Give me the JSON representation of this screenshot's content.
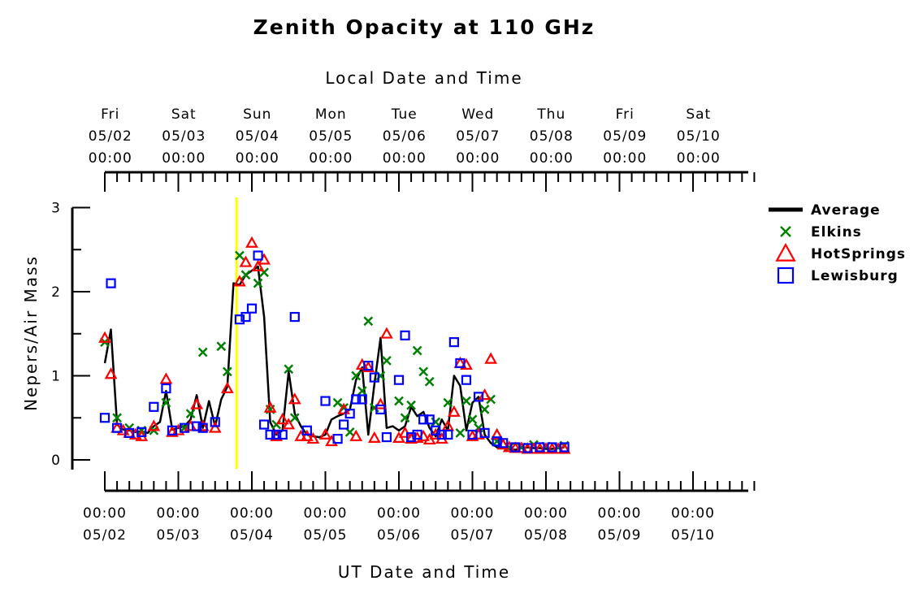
{
  "chart_data": {
    "type": "line",
    "title": "Zenith Opacity at 110 GHz",
    "top_axis_title": "Local Date and Time",
    "xlabel": "UT Date and Time",
    "ylabel": "Nepers/Air Mass",
    "ylim": [
      0,
      3
    ],
    "y_ticks": [
      "0",
      "1",
      "2",
      "3"
    ],
    "xlim": [
      "05/02 00:00",
      "05/10 20:00"
    ],
    "top_ticks": [
      {
        "day": "Fri",
        "date": "05/02",
        "time": "00:00"
      },
      {
        "day": "Sat",
        "date": "05/03",
        "time": "00:00"
      },
      {
        "day": "Sun",
        "date": "05/04",
        "time": "00:00"
      },
      {
        "day": "Mon",
        "date": "05/05",
        "time": "00:00"
      },
      {
        "day": "Tue",
        "date": "05/06",
        "time": "00:00"
      },
      {
        "day": "Wed",
        "date": "05/07",
        "time": "00:00"
      },
      {
        "day": "Thu",
        "date": "05/08",
        "time": "00:00"
      },
      {
        "day": "Fri",
        "date": "05/09",
        "time": "00:00"
      },
      {
        "day": "Sat",
        "date": "05/10",
        "time": "00:00"
      }
    ],
    "bottom_ticks": [
      {
        "time": "00:00",
        "date": "05/02"
      },
      {
        "time": "00:00",
        "date": "05/03"
      },
      {
        "time": "00:00",
        "date": "05/04"
      },
      {
        "time": "00:00",
        "date": "05/05"
      },
      {
        "time": "00:00",
        "date": "05/06"
      },
      {
        "time": "00:00",
        "date": "05/07"
      },
      {
        "time": "00:00",
        "date": "05/08"
      },
      {
        "time": "00:00",
        "date": "05/09"
      },
      {
        "time": "00:00",
        "date": "05/10"
      }
    ],
    "marker_line": {
      "x": "05/03 19:00",
      "color": "#ffff00"
    },
    "legend_position": "right",
    "series": [
      {
        "name": "Average",
        "style": "line",
        "color": "#000000",
        "points": [
          [
            "05/02 00:00",
            1.15
          ],
          [
            "05/02 02:00",
            1.55
          ],
          [
            "05/02 04:00",
            0.42
          ],
          [
            "05/02 06:00",
            0.36
          ],
          [
            "05/02 08:00",
            0.35
          ],
          [
            "05/02 10:00",
            0.33
          ],
          [
            "05/02 12:00",
            0.34
          ],
          [
            "05/02 14:00",
            0.32
          ],
          [
            "05/02 16:00",
            0.4
          ],
          [
            "05/02 18:00",
            0.45
          ],
          [
            "05/02 20:00",
            0.82
          ],
          [
            "05/02 22:00",
            0.36
          ],
          [
            "05/03 00:00",
            0.38
          ],
          [
            "05/03 02:00",
            0.4
          ],
          [
            "05/03 04:00",
            0.48
          ],
          [
            "05/03 06:00",
            0.77
          ],
          [
            "05/03 08:00",
            0.38
          ],
          [
            "05/03 10:00",
            0.7
          ],
          [
            "05/03 12:00",
            0.4
          ],
          [
            "05/03 14:00",
            0.72
          ],
          [
            "05/03 16:00",
            0.87
          ],
          [
            "05/03 18:00",
            2.1
          ],
          [
            "05/03 20:00",
            2.08
          ],
          [
            "05/03 22:00",
            2.2
          ],
          [
            "05/04 00:00",
            2.25
          ],
          [
            "05/04 02:00",
            2.3
          ],
          [
            "05/04 04:00",
            1.7
          ],
          [
            "05/04 06:00",
            0.45
          ],
          [
            "05/04 08:00",
            0.3
          ],
          [
            "05/04 10:00",
            0.35
          ],
          [
            "05/04 12:00",
            1.05
          ],
          [
            "05/04 14:00",
            0.55
          ],
          [
            "05/04 16:00",
            0.4
          ],
          [
            "05/04 18:00",
            0.3
          ],
          [
            "05/04 20:00",
            0.28
          ],
          [
            "05/04 22:00",
            0.27
          ],
          [
            "05/05 00:00",
            0.3
          ],
          [
            "05/05 02:00",
            0.48
          ],
          [
            "05/05 04:00",
            0.52
          ],
          [
            "05/05 06:00",
            0.55
          ],
          [
            "05/05 08:00",
            0.6
          ],
          [
            "05/05 10:00",
            0.95
          ],
          [
            "05/05 12:00",
            1.1
          ],
          [
            "05/05 14:00",
            0.3
          ],
          [
            "05/05 16:00",
            0.9
          ],
          [
            "05/05 18:00",
            1.45
          ],
          [
            "05/05 20:00",
            0.38
          ],
          [
            "05/05 22:00",
            0.4
          ],
          [
            "05/06 00:00",
            0.35
          ],
          [
            "05/06 02:00",
            0.4
          ],
          [
            "05/06 04:00",
            0.63
          ],
          [
            "05/06 06:00",
            0.52
          ],
          [
            "05/06 08:00",
            0.57
          ],
          [
            "05/06 10:00",
            0.38
          ],
          [
            "05/06 12:00",
            0.28
          ],
          [
            "05/06 14:00",
            0.48
          ],
          [
            "05/06 16:00",
            0.35
          ],
          [
            "05/06 18:00",
            1.0
          ],
          [
            "05/06 20:00",
            0.88
          ],
          [
            "05/06 22:00",
            0.35
          ],
          [
            "05/07 00:00",
            0.68
          ],
          [
            "05/07 02:00",
            0.75
          ],
          [
            "05/07 04:00",
            0.3
          ],
          [
            "05/07 06:00",
            0.2
          ],
          [
            "05/07 08:00",
            0.15
          ],
          [
            "05/07 10:00",
            0.14
          ],
          [
            "05/07 12:00",
            0.13
          ],
          [
            "05/07 14:00",
            0.12
          ],
          [
            "05/07 16:00",
            0.14
          ],
          [
            "05/07 18:00",
            0.15
          ],
          [
            "05/07 20:00",
            0.14
          ],
          [
            "05/07 22:00",
            0.14
          ],
          [
            "05/08 00:00",
            0.13
          ],
          [
            "05/08 02:00",
            0.13
          ],
          [
            "05/08 04:00",
            0.14
          ],
          [
            "05/08 06:00",
            0.15
          ]
        ]
      },
      {
        "name": "Elkins",
        "style": "x",
        "color": "#008000",
        "points": [
          [
            "05/02 00:00",
            1.4
          ],
          [
            "05/02 04:00",
            0.5
          ],
          [
            "05/02 08:00",
            0.38
          ],
          [
            "05/02 12:00",
            0.35
          ],
          [
            "05/02 16:00",
            0.35
          ],
          [
            "05/02 20:00",
            0.68
          ],
          [
            "05/03 02:00",
            0.38
          ],
          [
            "05/03 04:00",
            0.55
          ],
          [
            "05/03 08:00",
            1.28
          ],
          [
            "05/03 14:00",
            1.35
          ],
          [
            "05/03 16:00",
            1.05
          ],
          [
            "05/03 20:00",
            2.43
          ],
          [
            "05/03 22:00",
            2.2
          ],
          [
            "05/04 02:00",
            2.1
          ],
          [
            "05/04 04:00",
            2.23
          ],
          [
            "05/04 06:00",
            0.6
          ],
          [
            "05/04 08:00",
            0.42
          ],
          [
            "05/04 12:00",
            1.08
          ],
          [
            "05/04 14:00",
            0.5
          ],
          [
            "05/05 04:00",
            0.68
          ],
          [
            "05/05 06:00",
            0.62
          ],
          [
            "05/05 08:00",
            0.33
          ],
          [
            "05/05 10:00",
            1.0
          ],
          [
            "05/05 12:00",
            0.82
          ],
          [
            "05/05 14:00",
            1.65
          ],
          [
            "05/05 16:00",
            0.62
          ],
          [
            "05/05 18:00",
            1.0
          ],
          [
            "05/05 20:00",
            1.18
          ],
          [
            "05/06 00:00",
            0.7
          ],
          [
            "05/06 02:00",
            0.5
          ],
          [
            "05/06 04:00",
            0.65
          ],
          [
            "05/06 06:00",
            1.3
          ],
          [
            "05/06 08:00",
            1.05
          ],
          [
            "05/06 10:00",
            0.93
          ],
          [
            "05/06 12:00",
            0.45
          ],
          [
            "05/06 16:00",
            0.68
          ],
          [
            "05/06 20:00",
            0.32
          ],
          [
            "05/06 22:00",
            0.7
          ],
          [
            "05/07 00:00",
            0.48
          ],
          [
            "05/07 02:00",
            0.38
          ],
          [
            "05/07 04:00",
            0.6
          ],
          [
            "05/07 06:00",
            0.72
          ],
          [
            "05/07 08:00",
            0.22
          ],
          [
            "05/07 12:00",
            0.15
          ],
          [
            "05/07 16:00",
            0.15
          ],
          [
            "05/07 20:00",
            0.18
          ],
          [
            "05/08 00:00",
            0.16
          ],
          [
            "05/08 04:00",
            0.15
          ],
          [
            "05/08 06:00",
            0.17
          ]
        ]
      },
      {
        "name": "HotSprings",
        "style": "triangle",
        "color": "#ff0000",
        "points": [
          [
            "05/02 00:00",
            1.45
          ],
          [
            "05/02 02:00",
            1.02
          ],
          [
            "05/02 04:00",
            0.38
          ],
          [
            "05/02 06:00",
            0.35
          ],
          [
            "05/02 08:00",
            0.32
          ],
          [
            "05/02 10:00",
            0.3
          ],
          [
            "05/02 12:00",
            0.28
          ],
          [
            "05/02 16:00",
            0.4
          ],
          [
            "05/02 20:00",
            0.96
          ],
          [
            "05/02 22:00",
            0.33
          ],
          [
            "05/03 00:00",
            0.35
          ],
          [
            "05/03 04:00",
            0.4
          ],
          [
            "05/03 06:00",
            0.66
          ],
          [
            "05/03 08:00",
            0.4
          ],
          [
            "05/03 12:00",
            0.38
          ],
          [
            "05/03 16:00",
            0.85
          ],
          [
            "05/03 20:00",
            2.12
          ],
          [
            "05/03 22:00",
            2.35
          ],
          [
            "05/04 00:00",
            2.58
          ],
          [
            "05/04 02:00",
            2.3
          ],
          [
            "05/04 04:00",
            2.38
          ],
          [
            "05/04 06:00",
            0.62
          ],
          [
            "05/04 08:00",
            0.28
          ],
          [
            "05/04 10:00",
            0.48
          ],
          [
            "05/04 12:00",
            0.42
          ],
          [
            "05/04 14:00",
            0.72
          ],
          [
            "05/04 16:00",
            0.28
          ],
          [
            "05/04 18:00",
            0.28
          ],
          [
            "05/04 20:00",
            0.25
          ],
          [
            "05/05 00:00",
            0.3
          ],
          [
            "05/05 02:00",
            0.22
          ],
          [
            "05/05 06:00",
            0.6
          ],
          [
            "05/05 10:00",
            0.28
          ],
          [
            "05/05 12:00",
            1.13
          ],
          [
            "05/05 14:00",
            1.1
          ],
          [
            "05/05 16:00",
            0.26
          ],
          [
            "05/05 18:00",
            0.66
          ],
          [
            "05/05 20:00",
            1.5
          ],
          [
            "05/06 00:00",
            0.26
          ],
          [
            "05/06 02:00",
            0.32
          ],
          [
            "05/06 04:00",
            0.25
          ],
          [
            "05/06 06:00",
            0.26
          ],
          [
            "05/06 08:00",
            0.28
          ],
          [
            "05/06 10:00",
            0.24
          ],
          [
            "05/06 12:00",
            0.3
          ],
          [
            "05/06 14:00",
            0.25
          ],
          [
            "05/06 16:00",
            0.4
          ],
          [
            "05/06 18:00",
            0.57
          ],
          [
            "05/06 20:00",
            1.15
          ],
          [
            "05/06 22:00",
            1.13
          ],
          [
            "05/07 00:00",
            0.28
          ],
          [
            "05/07 02:00",
            0.3
          ],
          [
            "05/07 04:00",
            0.77
          ],
          [
            "05/07 06:00",
            1.2
          ],
          [
            "05/07 08:00",
            0.3
          ],
          [
            "05/07 10:00",
            0.18
          ],
          [
            "05/07 12:00",
            0.15
          ],
          [
            "05/07 14:00",
            0.14
          ],
          [
            "05/07 16:00",
            0.14
          ],
          [
            "05/07 18:00",
            0.13
          ],
          [
            "05/07 20:00",
            0.13
          ],
          [
            "05/07 22:00",
            0.13
          ],
          [
            "05/08 00:00",
            0.13
          ],
          [
            "05/08 02:00",
            0.13
          ],
          [
            "05/08 04:00",
            0.13
          ],
          [
            "05/08 06:00",
            0.13
          ]
        ]
      },
      {
        "name": "Lewisburg",
        "style": "square",
        "color": "#0000ff",
        "points": [
          [
            "05/02 00:00",
            0.5
          ],
          [
            "05/02 02:00",
            2.1
          ],
          [
            "05/02 04:00",
            0.38
          ],
          [
            "05/02 08:00",
            0.32
          ],
          [
            "05/02 12:00",
            0.33
          ],
          [
            "05/02 16:00",
            0.63
          ],
          [
            "05/02 20:00",
            0.85
          ],
          [
            "05/02 22:00",
            0.35
          ],
          [
            "05/03 02:00",
            0.38
          ],
          [
            "05/03 06:00",
            0.4
          ],
          [
            "05/03 08:00",
            0.38
          ],
          [
            "05/03 12:00",
            0.45
          ],
          [
            "05/03 20:00",
            1.67
          ],
          [
            "05/03 22:00",
            1.7
          ],
          [
            "05/04 00:00",
            1.8
          ],
          [
            "05/04 02:00",
            2.43
          ],
          [
            "05/04 04:00",
            0.42
          ],
          [
            "05/04 06:00",
            0.3
          ],
          [
            "05/04 08:00",
            0.3
          ],
          [
            "05/04 10:00",
            0.3
          ],
          [
            "05/04 14:00",
            1.7
          ],
          [
            "05/04 18:00",
            0.35
          ],
          [
            "05/05 00:00",
            0.7
          ],
          [
            "05/05 04:00",
            0.25
          ],
          [
            "05/05 06:00",
            0.42
          ],
          [
            "05/05 08:00",
            0.55
          ],
          [
            "05/05 10:00",
            0.72
          ],
          [
            "05/05 12:00",
            0.72
          ],
          [
            "05/05 14:00",
            1.12
          ],
          [
            "05/05 16:00",
            0.98
          ],
          [
            "05/05 18:00",
            0.6
          ],
          [
            "05/05 20:00",
            0.27
          ],
          [
            "05/06 00:00",
            0.95
          ],
          [
            "05/06 02:00",
            1.48
          ],
          [
            "05/06 04:00",
            0.27
          ],
          [
            "05/06 06:00",
            0.3
          ],
          [
            "05/06 08:00",
            0.48
          ],
          [
            "05/06 10:00",
            0.48
          ],
          [
            "05/06 12:00",
            0.35
          ],
          [
            "05/06 14:00",
            0.3
          ],
          [
            "05/06 16:00",
            0.3
          ],
          [
            "05/06 18:00",
            1.4
          ],
          [
            "05/06 20:00",
            1.15
          ],
          [
            "05/06 22:00",
            0.95
          ],
          [
            "05/07 00:00",
            0.3
          ],
          [
            "05/07 02:00",
            0.75
          ],
          [
            "05/07 04:00",
            0.32
          ],
          [
            "05/07 08:00",
            0.22
          ],
          [
            "05/07 10:00",
            0.2
          ],
          [
            "05/07 14:00",
            0.15
          ],
          [
            "05/07 18:00",
            0.14
          ],
          [
            "05/07 22:00",
            0.15
          ],
          [
            "05/08 02:00",
            0.15
          ],
          [
            "05/08 06:00",
            0.15
          ]
        ]
      }
    ]
  }
}
